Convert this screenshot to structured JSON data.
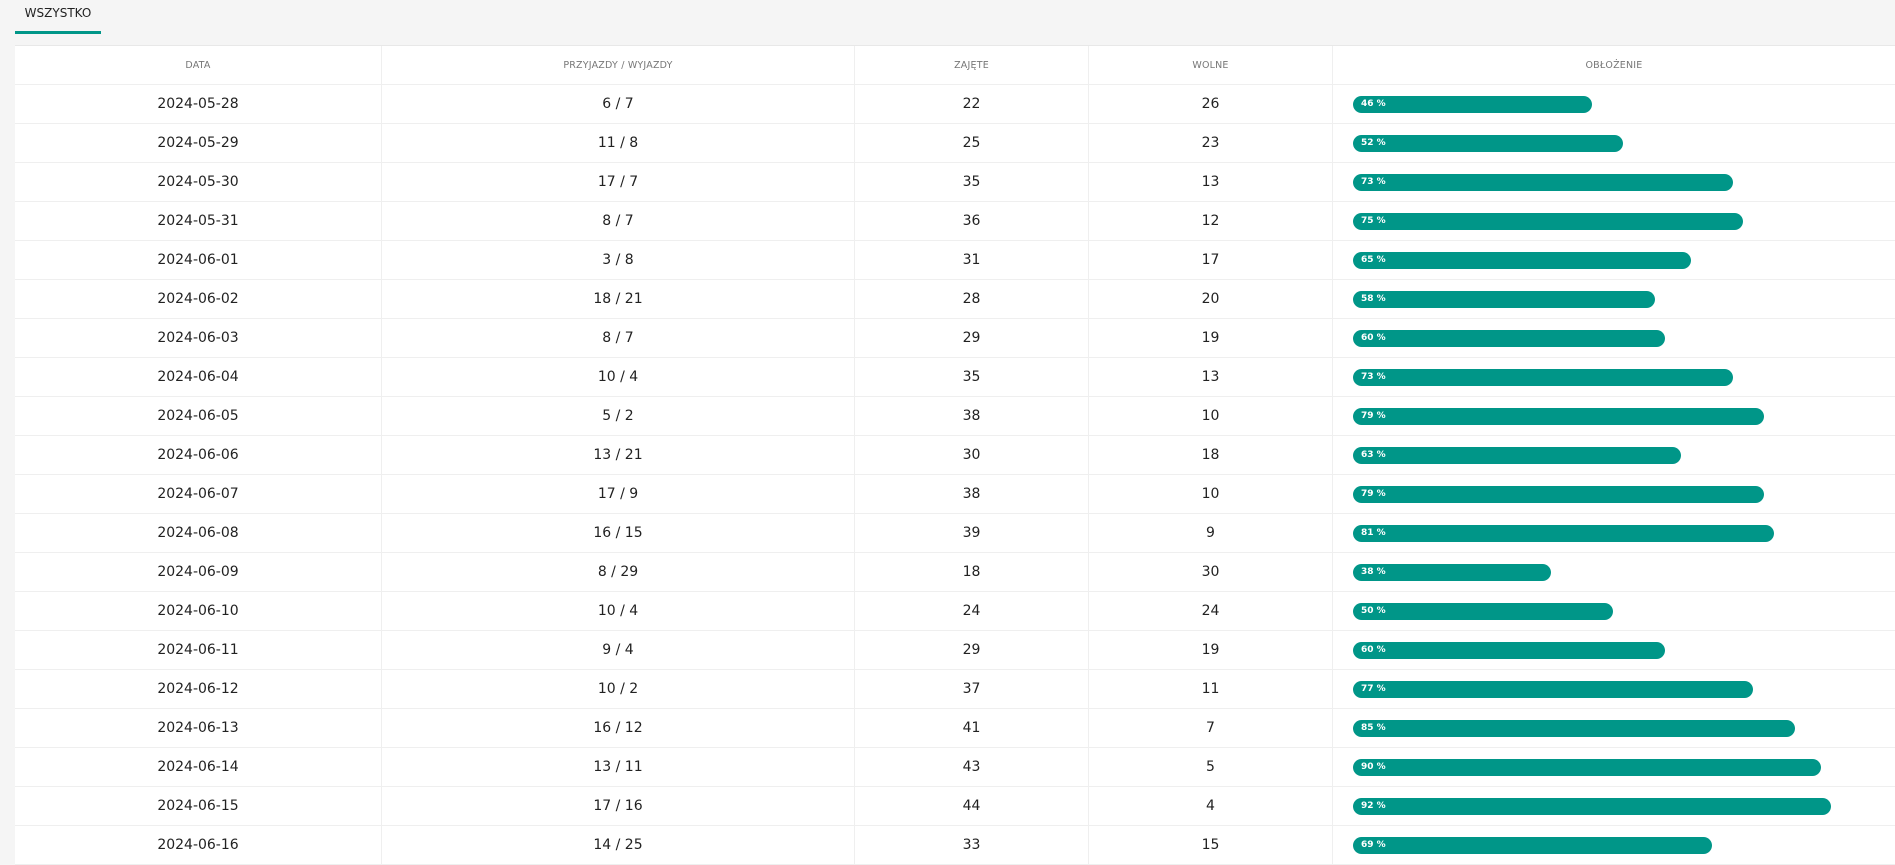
{
  "tabs": [
    {
      "label": "WSZYSTKO",
      "active": true
    }
  ],
  "accent_color": "#009688",
  "table": {
    "columns": [
      "DATA",
      "PRZYJAZDY / WYJAZDY",
      "ZAJĘTE",
      "WOLNE",
      "OBŁOŻENIE"
    ],
    "rows": [
      {
        "date": "2024-05-28",
        "arr_dep": "6 / 7",
        "occupied": "22",
        "free": "26",
        "occupancy": 46,
        "occupancy_label": "46 %"
      },
      {
        "date": "2024-05-29",
        "arr_dep": "11 / 8",
        "occupied": "25",
        "free": "23",
        "occupancy": 52,
        "occupancy_label": "52 %"
      },
      {
        "date": "2024-05-30",
        "arr_dep": "17 / 7",
        "occupied": "35",
        "free": "13",
        "occupancy": 73,
        "occupancy_label": "73 %"
      },
      {
        "date": "2024-05-31",
        "arr_dep": "8 / 7",
        "occupied": "36",
        "free": "12",
        "occupancy": 75,
        "occupancy_label": "75 %"
      },
      {
        "date": "2024-06-01",
        "arr_dep": "3 / 8",
        "occupied": "31",
        "free": "17",
        "occupancy": 65,
        "occupancy_label": "65 %"
      },
      {
        "date": "2024-06-02",
        "arr_dep": "18 / 21",
        "occupied": "28",
        "free": "20",
        "occupancy": 58,
        "occupancy_label": "58 %"
      },
      {
        "date": "2024-06-03",
        "arr_dep": "8 / 7",
        "occupied": "29",
        "free": "19",
        "occupancy": 60,
        "occupancy_label": "60 %"
      },
      {
        "date": "2024-06-04",
        "arr_dep": "10 / 4",
        "occupied": "35",
        "free": "13",
        "occupancy": 73,
        "occupancy_label": "73 %"
      },
      {
        "date": "2024-06-05",
        "arr_dep": "5 / 2",
        "occupied": "38",
        "free": "10",
        "occupancy": 79,
        "occupancy_label": "79 %"
      },
      {
        "date": "2024-06-06",
        "arr_dep": "13 / 21",
        "occupied": "30",
        "free": "18",
        "occupancy": 63,
        "occupancy_label": "63 %"
      },
      {
        "date": "2024-06-07",
        "arr_dep": "17 / 9",
        "occupied": "38",
        "free": "10",
        "occupancy": 79,
        "occupancy_label": "79 %"
      },
      {
        "date": "2024-06-08",
        "arr_dep": "16 / 15",
        "occupied": "39",
        "free": "9",
        "occupancy": 81,
        "occupancy_label": "81 %"
      },
      {
        "date": "2024-06-09",
        "arr_dep": "8 / 29",
        "occupied": "18",
        "free": "30",
        "occupancy": 38,
        "occupancy_label": "38 %"
      },
      {
        "date": "2024-06-10",
        "arr_dep": "10 / 4",
        "occupied": "24",
        "free": "24",
        "occupancy": 50,
        "occupancy_label": "50 %"
      },
      {
        "date": "2024-06-11",
        "arr_dep": "9 / 4",
        "occupied": "29",
        "free": "19",
        "occupancy": 60,
        "occupancy_label": "60 %"
      },
      {
        "date": "2024-06-12",
        "arr_dep": "10 / 2",
        "occupied": "37",
        "free": "11",
        "occupancy": 77,
        "occupancy_label": "77 %"
      },
      {
        "date": "2024-06-13",
        "arr_dep": "16 / 12",
        "occupied": "41",
        "free": "7",
        "occupancy": 85,
        "occupancy_label": "85 %"
      },
      {
        "date": "2024-06-14",
        "arr_dep": "13 / 11",
        "occupied": "43",
        "free": "5",
        "occupancy": 90,
        "occupancy_label": "90 %"
      },
      {
        "date": "2024-06-15",
        "arr_dep": "17 / 16",
        "occupied": "44",
        "free": "4",
        "occupancy": 92,
        "occupancy_label": "92 %"
      },
      {
        "date": "2024-06-16",
        "arr_dep": "14 / 25",
        "occupied": "33",
        "free": "15",
        "occupancy": 69,
        "occupancy_label": "69 %"
      }
    ]
  }
}
